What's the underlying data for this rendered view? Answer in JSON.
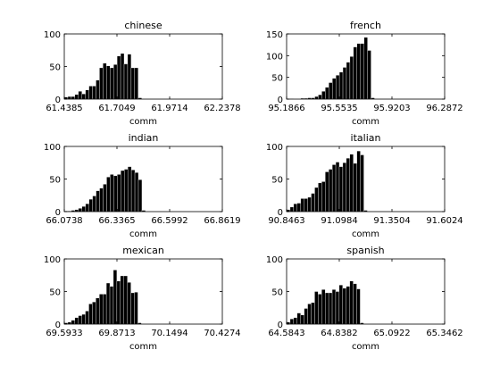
{
  "chart_data": [
    {
      "type": "bar",
      "title": "chinese",
      "xlabel": "comm",
      "ylabel": "",
      "ylim": [
        0,
        100
      ],
      "yticks": [
        0,
        50,
        100
      ],
      "xlim": [
        61.4385,
        62.2378
      ],
      "xticks": [
        "61.4385",
        "61.7049",
        "61.9714",
        "62.2378"
      ],
      "grid": false,
      "bin_start": 61.4385,
      "bin_width": 0.0178,
      "values": [
        3,
        4,
        4,
        7,
        12,
        8,
        14,
        20,
        20,
        29,
        48,
        55,
        51,
        48,
        53,
        66,
        70,
        54,
        69,
        48,
        48,
        2
      ]
    },
    {
      "type": "bar",
      "title": "french",
      "xlabel": "comm",
      "ylabel": "",
      "ylim": [
        0,
        150
      ],
      "yticks": [
        0,
        50,
        100,
        150
      ],
      "xlim": [
        95.1866,
        96.2872
      ],
      "xticks": [
        "95.1866",
        "95.5535",
        "95.9203",
        "96.2872"
      ],
      "grid": false,
      "bin_start": 95.1866,
      "bin_width": 0.0245,
      "values": [
        1,
        1,
        0,
        0,
        2,
        2,
        3,
        3,
        6,
        10,
        18,
        27,
        38,
        48,
        55,
        62,
        73,
        85,
        98,
        120,
        128,
        128,
        142,
        112,
        3
      ]
    },
    {
      "type": "bar",
      "title": "indian",
      "xlabel": "comm",
      "ylabel": "",
      "ylim": [
        0,
        100
      ],
      "yticks": [
        0,
        50,
        100
      ],
      "xlim": [
        66.0738,
        66.8619
      ],
      "xticks": [
        "66.0738",
        "66.3365",
        "66.5992",
        "66.8619"
      ],
      "grid": false,
      "bin_start": 66.0738,
      "bin_width": 0.0176,
      "values": [
        1,
        1,
        2,
        3,
        5,
        8,
        12,
        19,
        24,
        32,
        36,
        42,
        53,
        57,
        55,
        57,
        63,
        65,
        69,
        64,
        60,
        49,
        2
      ]
    },
    {
      "type": "bar",
      "title": "italian",
      "xlabel": "comm",
      "ylabel": "",
      "ylim": [
        0,
        100
      ],
      "yticks": [
        0,
        50,
        100
      ],
      "xlim": [
        90.8463,
        91.6024
      ],
      "xticks": [
        "90.8463",
        "91.0984",
        "91.3504",
        "91.6024"
      ],
      "grid": false,
      "bin_start": 90.8463,
      "bin_width": 0.0168,
      "values": [
        3,
        7,
        12,
        13,
        20,
        20,
        22,
        28,
        37,
        44,
        46,
        61,
        65,
        72,
        76,
        69,
        75,
        82,
        88,
        74,
        93,
        87,
        2
      ]
    },
    {
      "type": "bar",
      "title": "mexican",
      "xlabel": "comm",
      "ylabel": "",
      "ylim": [
        0,
        100
      ],
      "yticks": [
        0,
        50,
        100
      ],
      "xlim": [
        69.5933,
        70.4274
      ],
      "xticks": [
        "69.5933",
        "69.8713",
        "70.1494",
        "70.4274"
      ],
      "grid": false,
      "bin_start": 69.5933,
      "bin_width": 0.0185,
      "values": [
        2,
        3,
        6,
        10,
        13,
        15,
        20,
        31,
        34,
        40,
        46,
        46,
        63,
        58,
        83,
        66,
        74,
        74,
        64,
        48,
        49,
        2
      ]
    },
    {
      "type": "bar",
      "title": "spanish",
      "xlabel": "comm",
      "ylabel": "",
      "ylim": [
        0,
        100
      ],
      "yticks": [
        0,
        50,
        100
      ],
      "xlim": [
        64.5843,
        65.3462
      ],
      "xticks": [
        "64.5843",
        "64.8382",
        "65.0922",
        "65.3462"
      ],
      "grid": false,
      "bin_start": 64.5843,
      "bin_width": 0.0169,
      "values": [
        3,
        8,
        10,
        17,
        14,
        24,
        31,
        33,
        50,
        46,
        53,
        48,
        48,
        53,
        50,
        60,
        55,
        58,
        66,
        62,
        54,
        2
      ]
    }
  ]
}
